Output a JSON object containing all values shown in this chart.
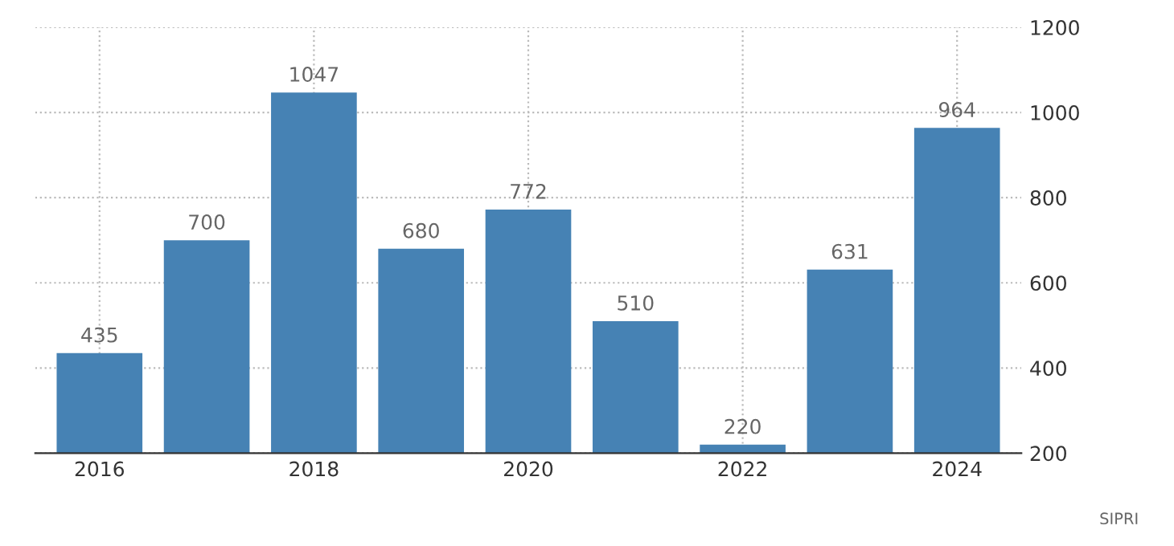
{
  "chart_data": {
    "type": "bar",
    "categories": [
      "2016",
      null,
      "2018",
      null,
      "2020",
      null,
      "2022",
      null,
      "2024"
    ],
    "values": [
      435,
      700,
      1047,
      680,
      772,
      510,
      220,
      631,
      964
    ],
    "color": "#4682b4",
    "ylim": [
      200,
      1200
    ],
    "yticks": [
      200,
      400,
      600,
      800,
      1000,
      1200
    ],
    "grid": true,
    "data_labels": true,
    "annotations": [
      "SIPRI"
    ]
  }
}
